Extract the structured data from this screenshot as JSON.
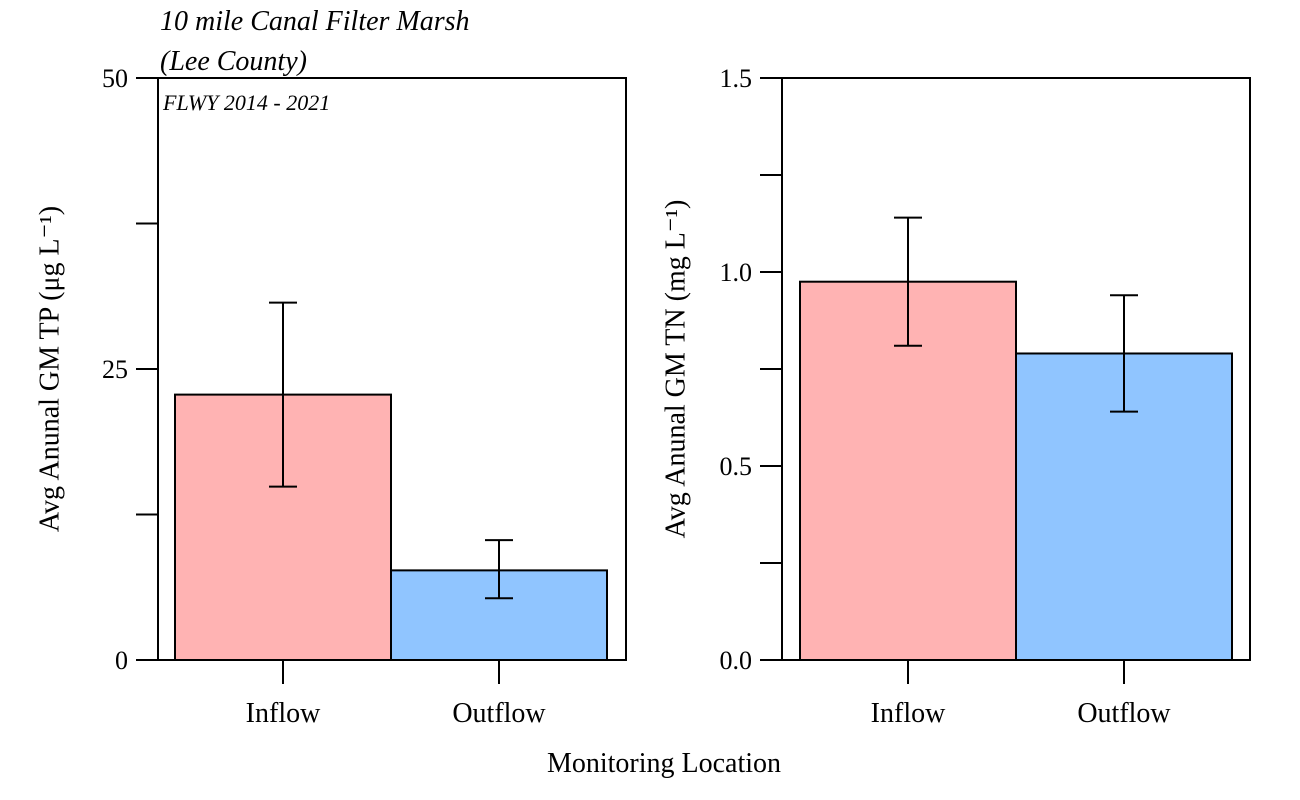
{
  "figure": {
    "title_line1": "10 mile Canal Filter Marsh",
    "title_line2": "(Lee County)",
    "subtitle": "FLWY 2014 - 2021",
    "xlabel": "Monitoring Location"
  },
  "chart_data": [
    {
      "type": "bar",
      "categories": [
        "Inflow",
        "Outflow"
      ],
      "values": [
        22.8,
        7.7
      ],
      "error_low": [
        14.9,
        5.3
      ],
      "error_high": [
        30.7,
        10.3
      ],
      "colors": [
        "#FFB3B3",
        "#90C5FF"
      ],
      "ylabel": "Avg Anunal GM TP (μg L⁻¹)",
      "ylim": [
        0,
        50
      ],
      "yticks": [
        0,
        12.5,
        25,
        37.5,
        50
      ],
      "ytick_labels": [
        "0",
        "",
        "25",
        "",
        "50"
      ]
    },
    {
      "type": "bar",
      "categories": [
        "Inflow",
        "Outflow"
      ],
      "values": [
        0.975,
        0.79
      ],
      "error_low": [
        0.81,
        0.64
      ],
      "error_high": [
        1.14,
        0.94
      ],
      "colors": [
        "#FFB3B3",
        "#90C5FF"
      ],
      "ylabel": "Avg Anunal GM TN (mg L⁻¹)",
      "ylim": [
        0,
        1.5
      ],
      "yticks": [
        0,
        0.25,
        0.5,
        0.75,
        1.0,
        1.25,
        1.5
      ],
      "ytick_labels": [
        "0.0",
        "",
        "0.5",
        "",
        "1.0",
        "",
        "1.5"
      ]
    }
  ]
}
